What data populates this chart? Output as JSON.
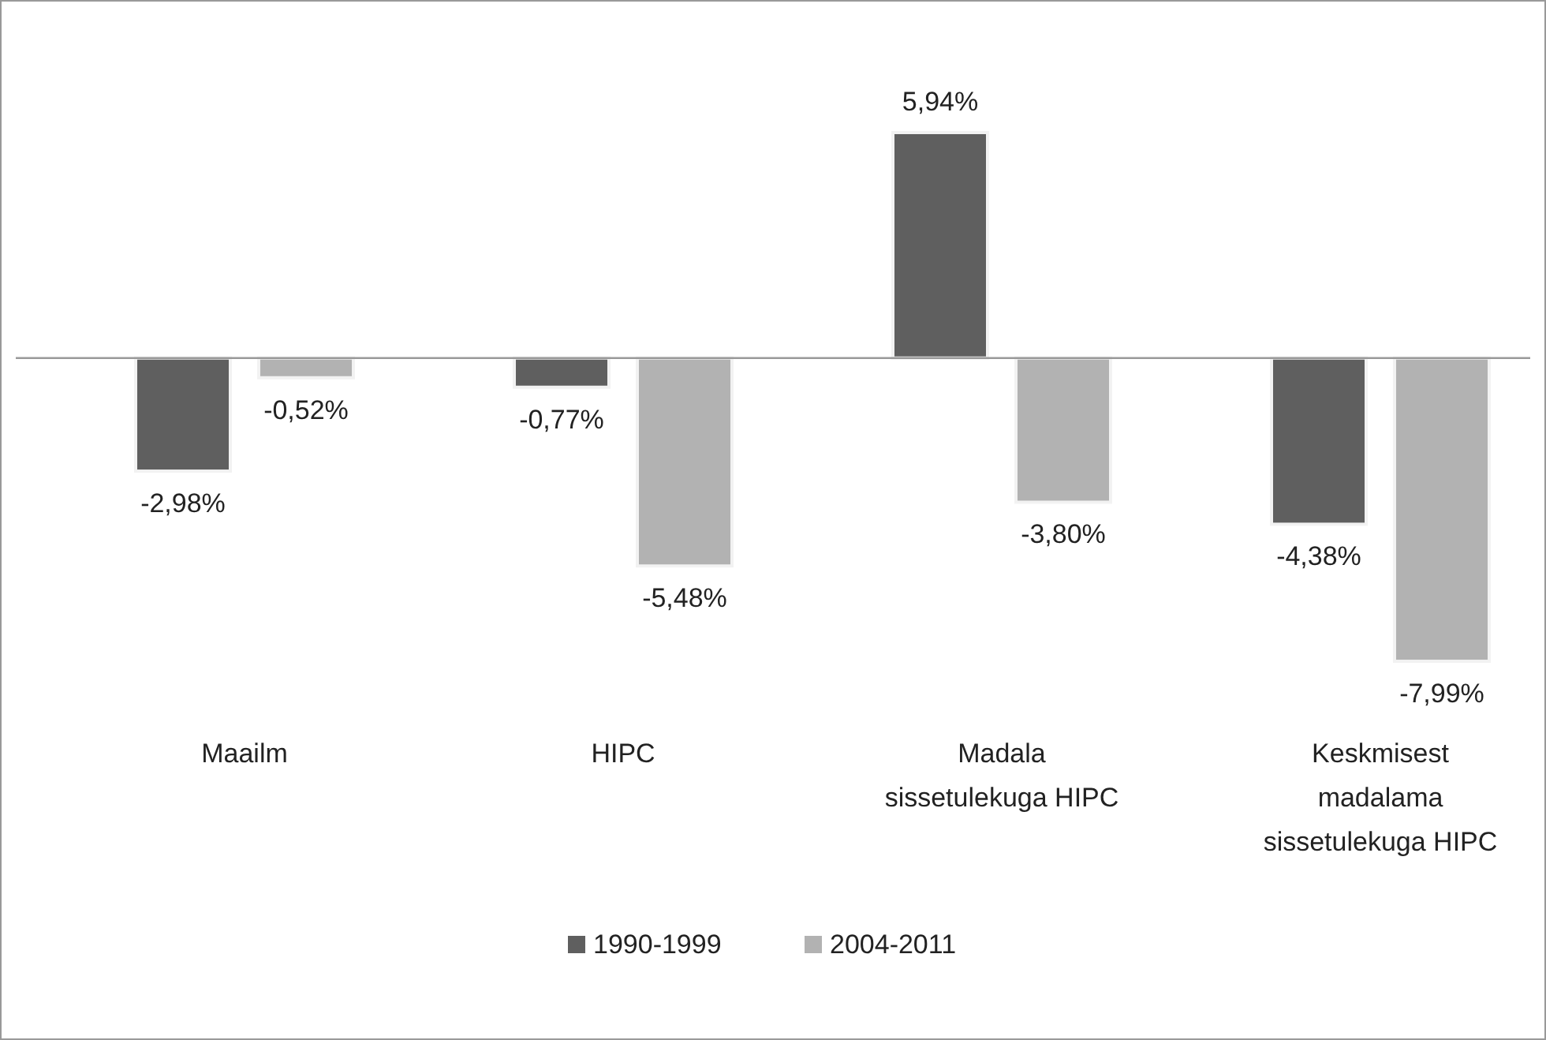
{
  "chart_data": {
    "type": "bar",
    "categories": [
      "Maailm",
      "HIPC",
      "Madala sissetulekuga HIPC",
      "Keskmisest madalama sissetulekuga HIPC"
    ],
    "series": [
      {
        "name": "1990-1999",
        "color": "#5f5f5f",
        "values": [
          -2.98,
          -0.77,
          5.94,
          -4.38
        ],
        "value_labels": [
          "-2,98%",
          "-0,77%",
          "5,94%",
          "-4,38%"
        ]
      },
      {
        "name": "2004-2011",
        "color": "#b2b2b2",
        "values": [
          -0.52,
          -5.48,
          -3.8,
          -7.99
        ],
        "value_labels": [
          "-0,52%",
          "-5,48%",
          "-3,80%",
          "-7,99%"
        ]
      }
    ],
    "legend": "bottom"
  }
}
